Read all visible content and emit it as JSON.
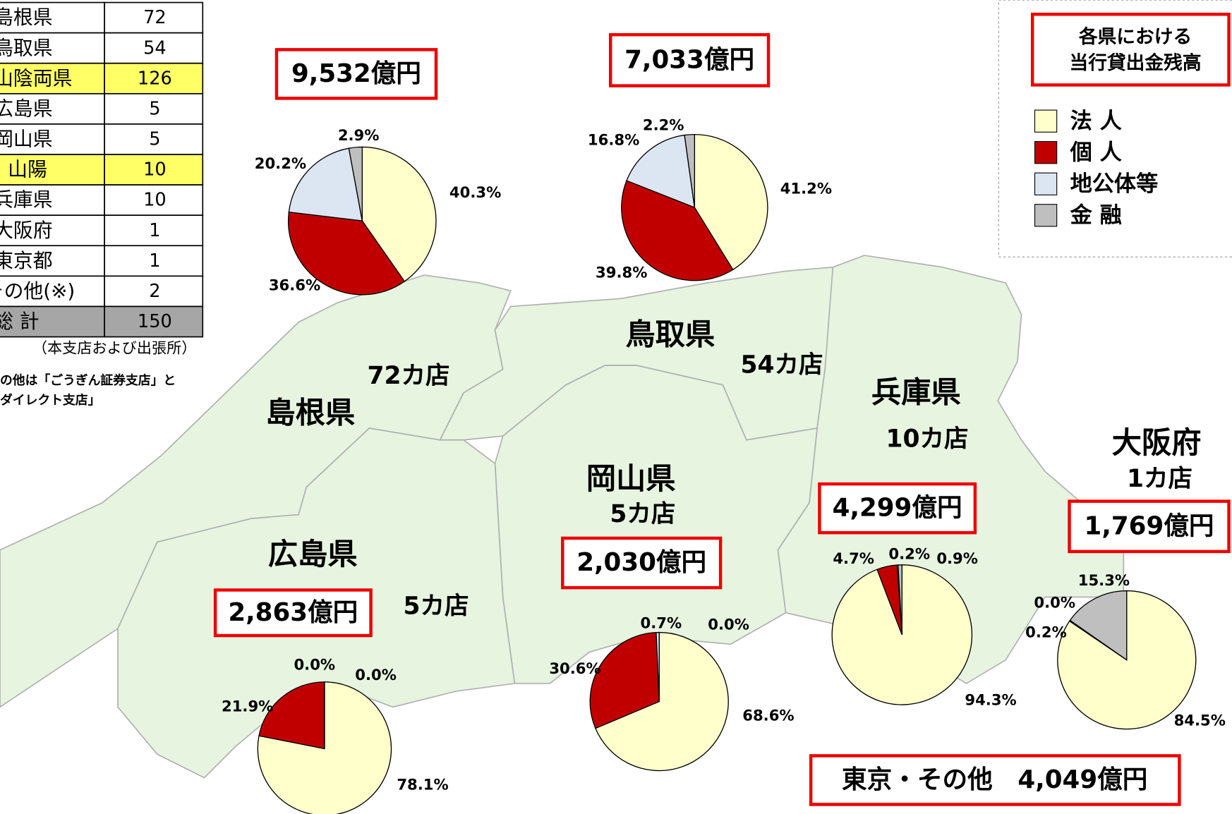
{
  "table": {
    "rows": [
      [
        "島根県",
        72
      ],
      [
        "鳥取県",
        54
      ],
      [
        "山陰両県",
        126
      ],
      [
        "広島県",
        5
      ],
      [
        "岡山県",
        5
      ],
      [
        "山陽",
        10
      ],
      [
        "兵庫県",
        10
      ],
      [
        "大阪府",
        1
      ],
      [
        "東京都",
        1
      ],
      [
        "その他(※)",
        2
      ],
      [
        "総 計",
        150
      ]
    ],
    "note": "（本支店および出張所）",
    "footnote": [
      "の他は「ごうぎん証券支店」と",
      "ダイレクト支店」"
    ]
  },
  "legend": {
    "title": [
      "各県における",
      "当行貸出金残高"
    ],
    "items": [
      {
        "name": "法 人",
        "color": "#ffffcc"
      },
      {
        "name": "個 人",
        "color": "#c00000"
      },
      {
        "name": "地公体等",
        "color": "#dce6f2"
      },
      {
        "name": "金 融",
        "color": "#bfbfbf"
      }
    ]
  },
  "regions": [
    {
      "name": "島根県",
      "stores": "72カ店"
    },
    {
      "name": "鳥取県",
      "stores": "54カ店"
    },
    {
      "name": "兵庫県",
      "stores": "10カ店"
    },
    {
      "name": "岡山県",
      "stores": "5カ店"
    },
    {
      "name": "広島県",
      "stores": "5カ店"
    },
    {
      "name": "大阪府",
      "stores": "1カ店"
    }
  ],
  "other_total": "東京・その他　4,049億円",
  "chart_data": [
    {
      "type": "pie",
      "title": "9,532億円",
      "values": [
        40.3,
        36.6,
        20.2,
        2.9
      ],
      "value_labels": [
        "40.3%",
        "36.6%",
        "20.2%",
        "2.9%"
      ]
    },
    {
      "type": "pie",
      "title": "7,033億円",
      "values": [
        41.2,
        39.8,
        16.8,
        2.2
      ],
      "value_labels": [
        "41.2%",
        "39.8%",
        "16.8%",
        "2.2%"
      ]
    },
    {
      "type": "pie",
      "title": "2,863億円",
      "values": [
        78.1,
        21.9,
        0.0,
        0.0
      ],
      "value_labels": [
        "78.1%",
        "21.9%",
        "0.0%",
        "0.0%"
      ]
    },
    {
      "type": "pie",
      "title": "2,030億円",
      "values": [
        68.6,
        30.6,
        0.7,
        0.0
      ],
      "value_labels": [
        "68.6%",
        "30.6%",
        "0.7%",
        "0.0%"
      ]
    },
    {
      "type": "pie",
      "title": "4,299億円",
      "values": [
        94.3,
        4.7,
        0.2,
        0.9
      ],
      "value_labels": [
        "94.3%",
        "4.7%",
        "0.2%",
        "0.9%"
      ]
    },
    {
      "type": "pie",
      "title": "1,769億円",
      "values": [
        84.5,
        0.2,
        0.0,
        15.3
      ],
      "value_labels": [
        "84.5%",
        "0.2%",
        "0.0%",
        "15.3%"
      ]
    }
  ]
}
